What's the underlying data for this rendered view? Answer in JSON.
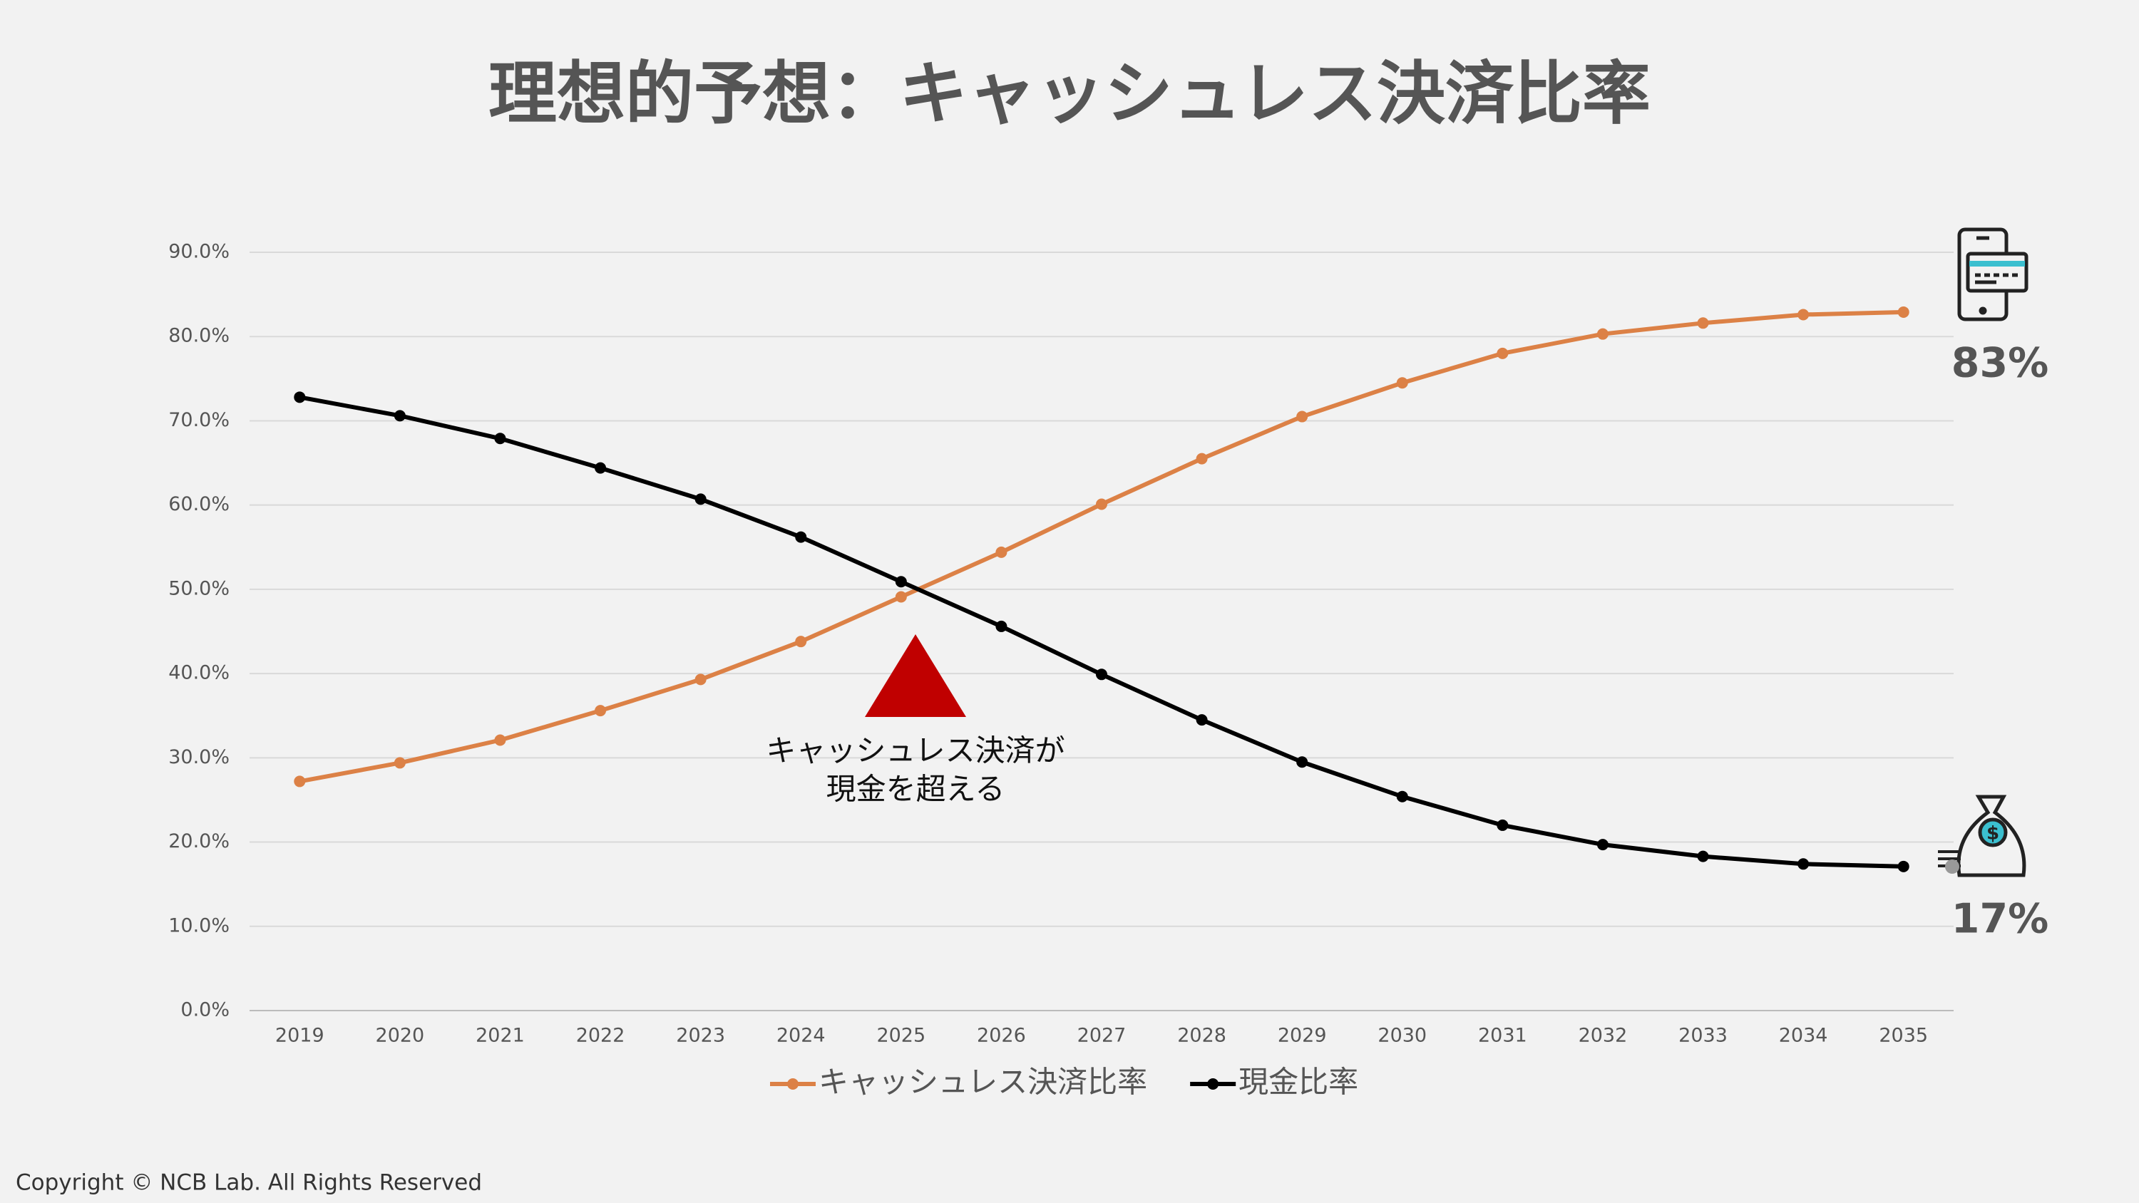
{
  "chart_data": {
    "type": "line",
    "title": "理想的予想：キャッシュレス決済比率",
    "categories": [
      "2019",
      "2020",
      "2021",
      "2022",
      "2023",
      "2024",
      "2025",
      "2026",
      "2027",
      "2028",
      "2029",
      "2030",
      "2031",
      "2032",
      "2033",
      "2034",
      "2035"
    ],
    "series": [
      {
        "name": "キャッシュレス決済比率",
        "color": "#dc8146",
        "values": [
          27.2,
          29.4,
          32.1,
          35.6,
          39.3,
          43.8,
          49.1,
          54.4,
          60.1,
          65.5,
          70.5,
          74.5,
          78.0,
          80.3,
          81.6,
          82.6,
          82.9
        ]
      },
      {
        "name": "現金比率",
        "color": "#000000",
        "values": [
          72.8,
          70.6,
          67.9,
          64.4,
          60.7,
          56.2,
          50.9,
          45.6,
          39.9,
          34.5,
          29.5,
          25.4,
          22.0,
          19.7,
          18.3,
          17.4,
          17.1
        ]
      }
    ],
    "ylim": [
      0,
      90
    ],
    "yticks": [
      {
        "value": 0,
        "label": "0.0%"
      },
      {
        "value": 10,
        "label": "10.0%"
      },
      {
        "value": 20,
        "label": "20.0%"
      },
      {
        "value": 30,
        "label": "30.0%"
      },
      {
        "value": 40,
        "label": "40.0%"
      },
      {
        "value": 50,
        "label": "50.0%"
      },
      {
        "value": 60,
        "label": "60.0%"
      },
      {
        "value": 70,
        "label": "70.0%"
      },
      {
        "value": 80,
        "label": "80.0%"
      },
      {
        "value": 90,
        "label": "90.0%"
      }
    ],
    "grid": true,
    "legend": "bottom",
    "annotations": {
      "crossing": [
        "キャッシュレス決済が",
        "現金を超える"
      ],
      "cashless_end": "83%",
      "cash_end": "17%"
    },
    "copyright": "Copyright © NCB Lab. All Rights Reserved"
  }
}
